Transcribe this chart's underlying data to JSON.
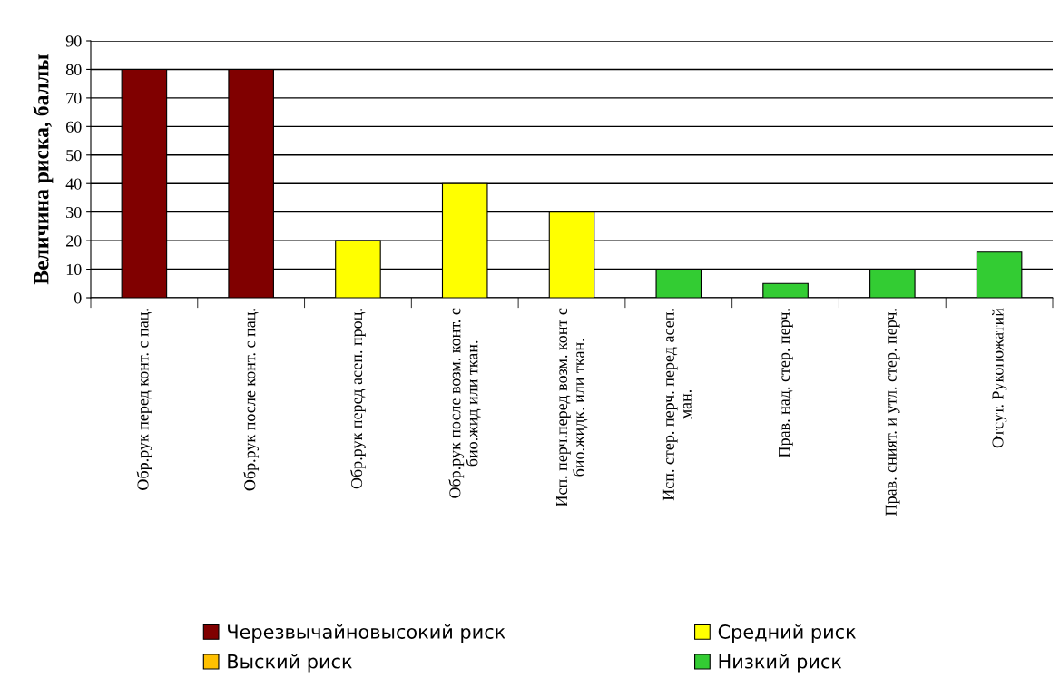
{
  "chart_data": {
    "type": "bar",
    "ylabel": "Величина риска, баллы",
    "categories": [
      "Обр.рук перед конт. с пац.",
      "Обр.рук после конт. с пац.",
      "Обр.рук перед асеп. проц.",
      "Обр.рук после возм. конт. с\nбио.жид или ткан.",
      "Исп. перч.перед возм. конт с\nбио.жидк. или ткан.",
      "Исп. стер. перч. перед асеп.\nман.",
      "Прав. над. стер. перч.",
      "Прав. сният. и утл. стер. перч.",
      "Отсут. Рукопожатий"
    ],
    "stacked": true,
    "series": [
      {
        "name": "Черезвычайновысокий риск",
        "color": "#800000",
        "values": [
          80,
          80,
          null,
          null,
          null,
          null,
          null,
          null,
          null
        ]
      },
      {
        "name": "Выский риск",
        "color": "#ffc000",
        "values": [
          null,
          null,
          null,
          null,
          null,
          null,
          null,
          null,
          null
        ]
      },
      {
        "name": "Средний риск",
        "color": "#ffff00",
        "values": [
          null,
          null,
          20,
          40,
          30,
          null,
          null,
          null,
          null
        ]
      },
      {
        "name": "Низкий риск",
        "color": "#33cc33",
        "values": [
          null,
          null,
          null,
          null,
          null,
          10,
          5,
          10,
          16
        ]
      }
    ],
    "ylim": [
      0,
      90
    ],
    "yticks": [
      0,
      10,
      20,
      30,
      40,
      50,
      60,
      70,
      80,
      90
    ],
    "grid": "y",
    "legend": "bottom"
  }
}
